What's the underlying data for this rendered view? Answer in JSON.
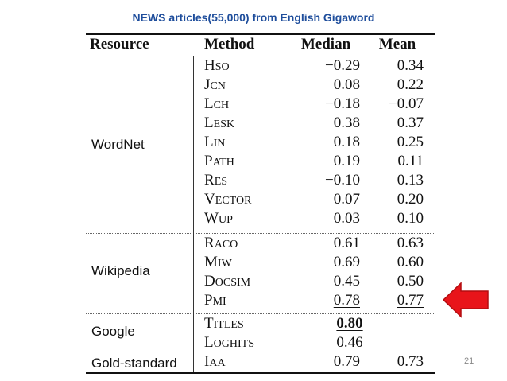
{
  "slide": {
    "title": "NEWS articles(55,000) from English Gigaword",
    "page_number": "21"
  },
  "table": {
    "headers": {
      "resource": "Resource",
      "method": "Method",
      "median": "Median",
      "mean": "Mean"
    },
    "groups": [
      {
        "resource": "WordNet",
        "rows": [
          {
            "method": "HSO",
            "median": "−0.29",
            "mean": "0.34"
          },
          {
            "method": "JCN",
            "median": "0.08",
            "mean": "0.22"
          },
          {
            "method": "LCH",
            "median": "−0.18",
            "mean": "−0.07"
          },
          {
            "method": "LESK",
            "median": "0.38",
            "mean": "0.37"
          },
          {
            "method": "LIN",
            "median": "0.18",
            "mean": "0.25"
          },
          {
            "method": "PATH",
            "median": "0.19",
            "mean": "0.11"
          },
          {
            "method": "RES",
            "median": "−0.10",
            "mean": "0.13"
          },
          {
            "method": "VECTOR",
            "median": "0.07",
            "mean": "0.20"
          },
          {
            "method": "WUP",
            "median": "0.03",
            "mean": "0.10"
          }
        ]
      },
      {
        "resource": "Wikipedia",
        "rows": [
          {
            "method": "RACO",
            "median": "0.61",
            "mean": "0.63"
          },
          {
            "method": "MIW",
            "median": "0.69",
            "mean": "0.60"
          },
          {
            "method": "DOCSIM",
            "median": "0.45",
            "mean": "0.50"
          },
          {
            "method": "PMI",
            "median": "0.78",
            "mean": "0.77"
          }
        ]
      },
      {
        "resource": "Google",
        "rows": [
          {
            "method": "TITLES",
            "median": "0.80"
          },
          {
            "method": "LOGHITS",
            "median": "0.46"
          }
        ]
      },
      {
        "resource": "Gold-standard",
        "rows": [
          {
            "method": "IAA",
            "median": "0.79",
            "mean": "0.73"
          }
        ]
      }
    ]
  },
  "arrow": {
    "icon": "red-arrow-left-icon",
    "color": "#e8141a"
  }
}
